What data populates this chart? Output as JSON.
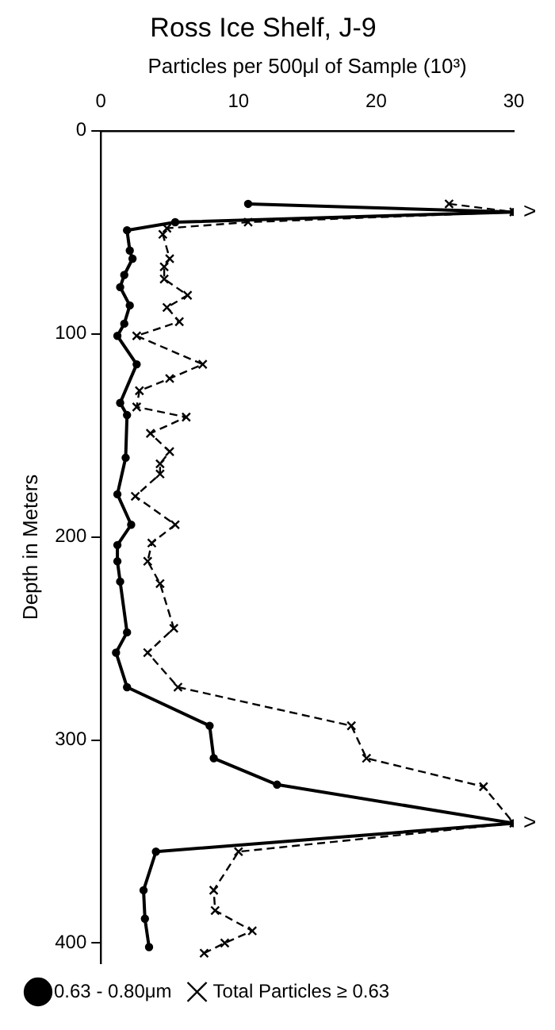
{
  "chart_data": {
    "type": "line",
    "title": "Ross Ice Shelf, J-9",
    "xlabel": "Particles per 500μl of Sample (10³)",
    "ylabel": "Depth in Meters",
    "xlim": [
      0,
      30
    ],
    "xticks": [
      0,
      10,
      20,
      30
    ],
    "ylim": [
      410,
      0
    ],
    "yticks": [
      0,
      100,
      200,
      300,
      400
    ],
    "grid": false,
    "legend": "bottom",
    "series": [
      {
        "name": "0.63 - 0.80μm",
        "color": "#000000",
        "marker": "circle",
        "line_style": "solid",
        "x": [
          10.7,
          30,
          5.4,
          1.9,
          2.1,
          2.3,
          1.7,
          1.4,
          2.1,
          1.7,
          1.2,
          2.6,
          1.4,
          1.9,
          1.8,
          1.2,
          2.2,
          1.2,
          1.2,
          1.4,
          1.9,
          1.1,
          1.9,
          7.9,
          8.2,
          12.8,
          30,
          4,
          3.1,
          3.2,
          3.5
        ],
        "values": [
          36,
          40,
          45,
          49,
          59,
          63,
          71,
          77,
          86,
          95,
          101,
          115,
          134,
          140,
          161,
          179,
          194,
          204,
          212,
          222,
          247,
          257,
          274,
          293,
          309,
          322,
          341,
          355,
          374,
          388,
          402
        ]
      },
      {
        "name": "Total Particles ≥ 0.63",
        "color": "#000000",
        "marker": "cross",
        "line_style": "dashed",
        "x": [
          25.3,
          30,
          10.7,
          4.8,
          4.5,
          5,
          4.6,
          4.6,
          6.3,
          4.8,
          5.7,
          2.6,
          7.4,
          5,
          2.8,
          2.6,
          6.2,
          3.6,
          5,
          4.3,
          4.3,
          2.5,
          5.4,
          3.7,
          3.4,
          4.3,
          5.3,
          3.4,
          5.6,
          18.2,
          19.3,
          27.8,
          30,
          10,
          8.2,
          8.3,
          11,
          9,
          7.5
        ],
        "values": [
          36,
          40,
          45,
          48,
          51,
          63,
          67,
          73,
          81,
          87,
          94,
          101,
          115,
          122,
          128,
          136,
          141,
          149,
          158,
          164,
          169,
          180,
          194,
          203,
          212,
          223,
          245,
          257,
          274,
          293,
          309,
          323,
          341,
          355,
          374,
          384,
          394,
          400,
          405
        ]
      }
    ],
    "annotations": [
      {
        "text": ">",
        "x": 30,
        "y": 40
      },
      {
        "text": ">",
        "x": 30,
        "y": 341
      }
    ]
  }
}
